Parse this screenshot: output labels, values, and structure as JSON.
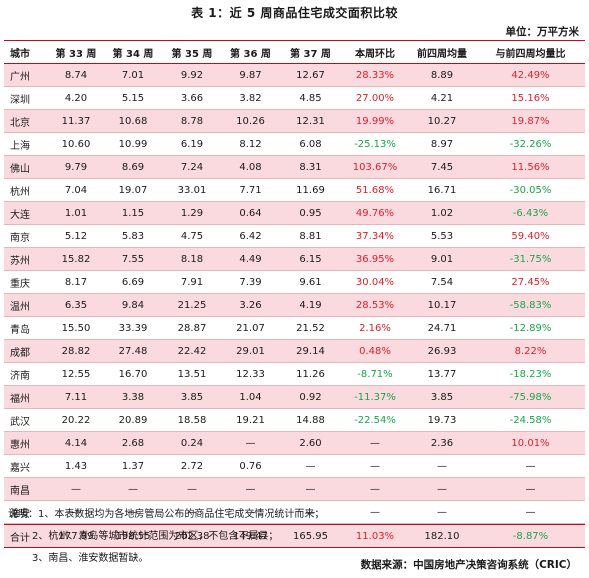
{
  "title": "表 1：近 5 周商品住宅成交面积比较",
  "unit": "单位：万平方米",
  "headers": [
    "城市",
    "第 33 周",
    "第 34 周",
    "第 35 周",
    "第 36 周",
    "第 37 周",
    "本周环比",
    "前四周均量",
    "与前四周均量比"
  ],
  "rows": [
    [
      "广州",
      "8.74",
      "7.01",
      "9.92",
      "9.87",
      "12.67",
      "28.33%",
      "8.89",
      "42.49%"
    ],
    [
      "深圳",
      "4.20",
      "5.15",
      "3.66",
      "3.82",
      "4.85",
      "27.00%",
      "4.21",
      "15.16%"
    ],
    [
      "北京",
      "11.37",
      "10.68",
      "8.78",
      "10.26",
      "12.31",
      "19.99%",
      "10.27",
      "19.87%"
    ],
    [
      "上海",
      "10.60",
      "10.99",
      "6.19",
      "8.12",
      "6.08",
      "-25.13%",
      "8.97",
      "-32.26%"
    ],
    [
      "佛山",
      "9.79",
      "8.69",
      "7.24",
      "4.08",
      "8.31",
      "103.67%",
      "7.45",
      "11.56%"
    ],
    [
      "杭州",
      "7.04",
      "19.07",
      "33.01",
      "7.71",
      "11.69",
      "51.68%",
      "16.71",
      "-30.05%"
    ],
    [
      "大连",
      "1.01",
      "1.15",
      "1.29",
      "0.64",
      "0.95",
      "49.76%",
      "1.02",
      "-6.43%"
    ],
    [
      "南京",
      "5.12",
      "5.83",
      "4.75",
      "6.42",
      "8.81",
      "37.34%",
      "5.53",
      "59.40%"
    ],
    [
      "苏州",
      "15.82",
      "7.55",
      "8.18",
      "4.49",
      "6.15",
      "36.95%",
      "9.01",
      "-31.75%"
    ],
    [
      "重庆",
      "8.17",
      "6.69",
      "7.91",
      "7.39",
      "9.61",
      "30.04%",
      "7.54",
      "27.45%"
    ],
    [
      "温州",
      "6.35",
      "9.84",
      "21.25",
      "3.26",
      "4.19",
      "28.53%",
      "10.17",
      "-58.83%"
    ],
    [
      "青岛",
      "15.50",
      "33.39",
      "28.87",
      "21.07",
      "21.52",
      "2.16%",
      "24.71",
      "-12.89%"
    ],
    [
      "成都",
      "28.82",
      "27.48",
      "22.42",
      "29.01",
      "29.14",
      "0.48%",
      "26.93",
      "8.22%"
    ],
    [
      "济南",
      "12.55",
      "16.70",
      "13.51",
      "12.33",
      "11.26",
      "-8.71%",
      "13.77",
      "-18.23%"
    ],
    [
      "福州",
      "7.11",
      "3.38",
      "3.85",
      "1.04",
      "0.92",
      "-11.37%",
      "3.85",
      "-75.98%"
    ],
    [
      "武汉",
      "20.22",
      "20.89",
      "18.58",
      "19.21",
      "14.88",
      "-22.54%",
      "19.73",
      "-24.58%"
    ],
    [
      "惠州",
      "4.14",
      "2.68",
      "0.24",
      "—",
      "2.60",
      "—",
      "2.36",
      "10.01%"
    ],
    [
      "嘉兴",
      "1.43",
      "1.37",
      "2.72",
      "0.76",
      "—",
      "—",
      "—",
      "—"
    ],
    [
      "南昌",
      "—",
      "—",
      "—",
      "—",
      "—",
      "—",
      "—",
      "—"
    ],
    [
      "淮安",
      "—",
      "—",
      "—",
      "—",
      "—",
      "—",
      "—",
      "—"
    ]
  ],
  "total": [
    "合计",
    "177.99",
    "198.55",
    "202.38",
    "149.47",
    "165.95",
    "11.03%",
    "182.10",
    "-8.87%"
  ],
  "notes": [
    "说明：1、本表数据均为各地房管局公布的商品住宅成交情况统计而来；",
    "2、杭州、青岛等城市统计范围为市区，不包含下属县；",
    "3、南昌、淮安数据暂缺。"
  ],
  "source": "数据来源：中国房地产决策咨询系统（CRIC）",
  "colors": {
    "accent_border": "#b3121b",
    "highlight_row": "#fbdadf",
    "positive": "#e01e29",
    "negative": "#1aa54b"
  }
}
